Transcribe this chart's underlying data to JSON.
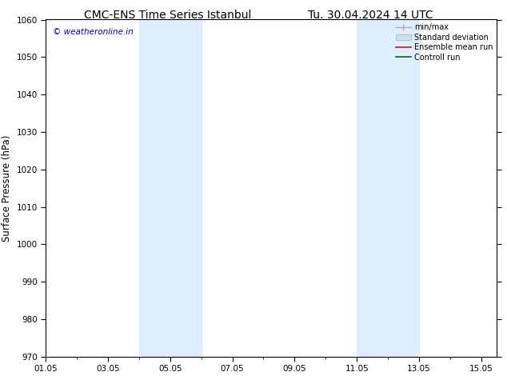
{
  "title_left": "CMC-ENS Time Series Istanbul",
  "title_right": "Tu. 30.04.2024 14 UTC",
  "ylabel": "Surface Pressure (hPa)",
  "ylim": [
    970,
    1060
  ],
  "yticks": [
    970,
    980,
    990,
    1000,
    1010,
    1020,
    1030,
    1040,
    1050,
    1060
  ],
  "xtick_labels": [
    "01.05",
    "03.05",
    "05.05",
    "07.05",
    "09.05",
    "11.05",
    "13.05",
    "15.05"
  ],
  "x_days": [
    1,
    3,
    5,
    7,
    9,
    11,
    13,
    15
  ],
  "xlim_days": [
    1,
    15.5
  ],
  "shaded_bands": [
    {
      "x_start": 4.0,
      "x_end": 6.0
    },
    {
      "x_start": 11.0,
      "x_end": 13.0
    }
  ],
  "shaded_color": "#ddeeff",
  "watermark_text": "© weatheronline.in",
  "watermark_color": "#0000cc",
  "legend_entries": [
    {
      "label": "min/max",
      "color": "#aaaaaa",
      "lw": 1,
      "type": "minmax"
    },
    {
      "label": "Standard deviation",
      "color": "#cce0f0",
      "lw": 8,
      "type": "bar"
    },
    {
      "label": "Ensemble mean run",
      "color": "#ff0000",
      "lw": 1.2,
      "type": "line"
    },
    {
      "label": "Controll run",
      "color": "#006600",
      "lw": 1.2,
      "type": "line"
    }
  ],
  "bg_color": "#ffffff",
  "title_fontsize": 10,
  "tick_fontsize": 7.5,
  "ylabel_fontsize": 8.5,
  "legend_fontsize": 7
}
